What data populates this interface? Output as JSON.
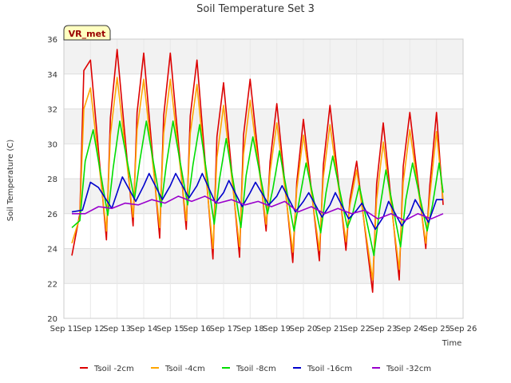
{
  "chart_data": {
    "type": "line",
    "title": "Soil Temperature Set 3",
    "xlabel": "Time",
    "ylabel": "Soil Temperature (C)",
    "badge": "VR_met",
    "grid": true,
    "legend_position": "bottom",
    "x_range": [
      "Sep 11",
      "Sep 26"
    ],
    "x_ticks": [
      "Sep 11",
      "Sep 12",
      "Sep 13",
      "Sep 14",
      "Sep 15",
      "Sep 16",
      "Sep 17",
      "Sep 18",
      "Sep 19",
      "Sep 20",
      "Sep 21",
      "Sep 22",
      "Sep 23",
      "Sep 24",
      "Sep 25",
      "Sep 26"
    ],
    "y_ticks": [
      20,
      22,
      24,
      26,
      28,
      30,
      32,
      34,
      36
    ],
    "ylim": [
      20,
      36
    ],
    "series": [
      {
        "name": "Tsoil -2cm",
        "color": "#dd0000",
        "x": [
          11.3,
          11.6,
          11.75,
          12.0,
          12.6,
          12.75,
          13.0,
          13.6,
          13.75,
          14.0,
          14.6,
          14.75,
          15.0,
          15.6,
          15.75,
          16.0,
          16.6,
          16.75,
          17.0,
          17.6,
          17.75,
          18.0,
          18.6,
          18.75,
          19.0,
          19.6,
          19.75,
          20.0,
          20.6,
          20.75,
          21.0,
          21.6,
          21.75,
          22.0,
          22.6,
          22.75,
          23.0,
          23.6,
          23.75,
          24.0,
          24.6,
          24.75,
          25.0,
          25.25
        ],
        "y": [
          23.6,
          26.0,
          34.2,
          34.8,
          24.5,
          31.5,
          35.4,
          25.3,
          31.8,
          35.2,
          24.6,
          31.6,
          35.2,
          25.1,
          31.6,
          34.8,
          23.4,
          30.4,
          33.5,
          23.5,
          30.5,
          33.7,
          25.0,
          29.0,
          32.3,
          23.2,
          27.8,
          31.4,
          23.3,
          28.8,
          32.2,
          23.9,
          26.8,
          29.0,
          21.5,
          27.7,
          31.2,
          22.2,
          28.7,
          31.8,
          24.0,
          27.6,
          31.8,
          26.5
        ]
      },
      {
        "name": "Tsoil -4cm",
        "color": "#ffa500",
        "x": [
          11.3,
          11.6,
          11.75,
          12.0,
          12.6,
          12.75,
          13.0,
          13.6,
          13.75,
          14.0,
          14.6,
          14.75,
          15.0,
          15.6,
          15.75,
          16.0,
          16.6,
          16.75,
          17.0,
          17.6,
          17.75,
          18.0,
          18.6,
          18.75,
          19.0,
          19.6,
          19.75,
          20.0,
          20.6,
          20.75,
          21.0,
          21.6,
          21.75,
          22.0,
          22.6,
          22.75,
          23.0,
          23.6,
          23.75,
          24.0,
          24.6,
          24.75,
          25.0,
          25.25
        ],
        "y": [
          24.3,
          25.8,
          32.0,
          33.2,
          25.0,
          30.5,
          33.8,
          25.8,
          30.8,
          33.7,
          25.2,
          30.6,
          33.7,
          25.6,
          30.6,
          33.4,
          24.0,
          29.2,
          32.2,
          24.1,
          29.4,
          32.5,
          25.4,
          28.4,
          31.2,
          23.8,
          27.4,
          30.5,
          23.9,
          28.1,
          31.1,
          24.4,
          26.5,
          28.5,
          22.2,
          26.8,
          30.1,
          22.8,
          27.8,
          30.8,
          24.3,
          27.0,
          30.7,
          26.8
        ]
      },
      {
        "name": "Tsoil -8cm",
        "color": "#00dd00",
        "x": [
          11.3,
          11.6,
          11.8,
          12.1,
          12.65,
          12.85,
          13.1,
          13.65,
          13.85,
          14.1,
          14.65,
          14.85,
          15.1,
          15.65,
          15.85,
          16.1,
          16.65,
          16.85,
          17.1,
          17.65,
          17.85,
          18.1,
          18.65,
          18.85,
          19.1,
          19.65,
          19.85,
          20.1,
          20.65,
          20.85,
          21.1,
          21.65,
          21.85,
          22.1,
          22.65,
          22.85,
          23.1,
          23.65,
          23.85,
          24.1,
          24.65,
          24.85,
          25.1,
          25.25
        ],
        "y": [
          25.2,
          25.6,
          29.0,
          30.8,
          25.9,
          28.6,
          31.3,
          26.8,
          29.0,
          31.3,
          26.4,
          28.8,
          31.3,
          26.5,
          28.8,
          31.1,
          25.4,
          28.0,
          30.3,
          25.2,
          28.2,
          30.4,
          26.0,
          27.4,
          29.6,
          25.0,
          26.8,
          28.9,
          24.9,
          27.2,
          29.3,
          25.2,
          26.0,
          27.6,
          23.6,
          26.1,
          28.5,
          24.1,
          26.8,
          28.9,
          25.0,
          26.5,
          28.9,
          27.2
        ]
      },
      {
        "name": "Tsoil -16cm",
        "color": "#0000cc",
        "x": [
          11.3,
          11.7,
          12.0,
          12.3,
          12.8,
          13.0,
          13.2,
          13.7,
          14.0,
          14.2,
          14.7,
          15.0,
          15.2,
          15.7,
          16.0,
          16.2,
          16.7,
          17.0,
          17.2,
          17.7,
          18.0,
          18.2,
          18.7,
          19.0,
          19.2,
          19.7,
          20.0,
          20.2,
          20.7,
          21.0,
          21.2,
          21.7,
          22.0,
          22.2,
          22.7,
          23.0,
          23.2,
          23.7,
          24.0,
          24.2,
          24.7,
          25.0,
          25.25
        ],
        "y": [
          26.1,
          26.2,
          27.8,
          27.5,
          26.3,
          27.2,
          28.1,
          26.7,
          27.6,
          28.3,
          26.8,
          27.6,
          28.3,
          26.9,
          27.6,
          28.3,
          26.6,
          27.2,
          27.9,
          26.4,
          27.2,
          27.8,
          26.5,
          27.0,
          27.6,
          26.1,
          26.7,
          27.2,
          25.8,
          26.5,
          27.2,
          25.7,
          26.2,
          26.6,
          25.1,
          25.8,
          26.7,
          25.3,
          26.0,
          26.8,
          25.5,
          26.8,
          26.8
        ]
      },
      {
        "name": "Tsoil -32cm",
        "color": "#9900cc",
        "x": [
          11.3,
          11.8,
          12.3,
          12.8,
          13.3,
          13.8,
          14.3,
          14.8,
          15.3,
          15.8,
          16.3,
          16.8,
          17.3,
          17.8,
          18.3,
          18.8,
          19.3,
          19.8,
          20.3,
          20.8,
          21.3,
          21.8,
          22.3,
          22.8,
          23.3,
          23.8,
          24.3,
          24.8,
          25.25
        ],
        "y": [
          26.0,
          26.0,
          26.4,
          26.3,
          26.6,
          26.5,
          26.8,
          26.6,
          27.0,
          26.7,
          27.0,
          26.6,
          26.8,
          26.5,
          26.7,
          26.4,
          26.7,
          26.1,
          26.4,
          26.0,
          26.3,
          26.0,
          26.2,
          25.7,
          26.0,
          25.6,
          26.0,
          25.7,
          26.0
        ]
      }
    ]
  }
}
